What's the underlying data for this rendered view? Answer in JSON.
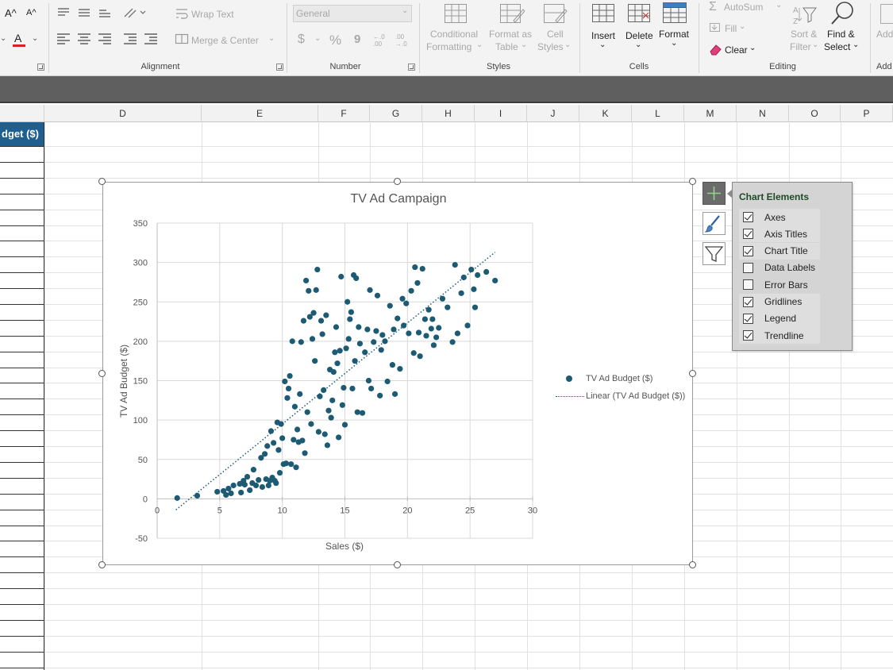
{
  "ribbon": {
    "font_row": {
      "grow_label": "A^",
      "shrink_label": "A^",
      "font_color_label": "A"
    },
    "alignment": {
      "wrap_text_label": "Wrap Text",
      "merge_center_label": "Merge & Center",
      "group_label": "Alignment"
    },
    "number": {
      "format_value": "General",
      "currency_label": "$",
      "percent_label": "%",
      "comma_label": "9",
      "inc_decimal_label": "←.0 .00",
      "dec_decimal_label": ".00 →.0",
      "group_label": "Number"
    },
    "styles": {
      "conditional_formatting_line1": "Conditional",
      "conditional_formatting_line2": "Formatting",
      "format_as_table_line1": "Format as",
      "format_as_table_line2": "Table",
      "cell_styles_line1": "Cell",
      "cell_styles_line2": "Styles",
      "group_label": "Styles"
    },
    "cells": {
      "insert_label": "Insert",
      "delete_label": "Delete",
      "format_label": "Format",
      "group_label": "Cells"
    },
    "editing": {
      "autosum_label": "AutoSum",
      "fill_label": "Fill",
      "clear_label": "Clear",
      "sort_filter_line1": "Sort &",
      "sort_filter_line2": "Filter",
      "find_select_line1": "Find &",
      "find_select_line2": "Select",
      "group_label": "Editing"
    },
    "addins": {
      "label_top": "Add",
      "group_label": "Add"
    }
  },
  "columns": [
    "D",
    "E",
    "F",
    "G",
    "H",
    "I",
    "J",
    "K",
    "L",
    "M",
    "N",
    "O",
    "P"
  ],
  "sheet": {
    "header_cell_text": "dget ($)"
  },
  "chart_data": {
    "type": "scatter",
    "title": "TV Ad Campaign",
    "xlabel": "Sales ($)",
    "ylabel": "TV Ad Budget ($)",
    "xlim": [
      0,
      30
    ],
    "ylim": [
      -50,
      350
    ],
    "x_ticks": [
      0,
      5,
      10,
      15,
      20,
      25,
      30
    ],
    "y_ticks": [
      -50,
      0,
      50,
      100,
      150,
      200,
      250,
      300,
      350
    ],
    "x_tick_labels": [
      "0",
      "5",
      "10",
      "15",
      "20",
      "25",
      "30"
    ],
    "y_tick_labels": [
      "-50",
      "0",
      "50",
      "100",
      "150",
      "200",
      "250",
      "300",
      "350"
    ],
    "grid": true,
    "legend_position": "right",
    "series": [
      {
        "name": "TV Ad Budget ($)",
        "color": "#1d5a73",
        "points": [
          [
            1.6,
            1
          ],
          [
            3.2,
            4
          ],
          [
            4.8,
            9
          ],
          [
            5.3,
            10
          ],
          [
            5.5,
            5
          ],
          [
            5.7,
            13
          ],
          [
            5.9,
            7
          ],
          [
            6.1,
            17
          ],
          [
            6.6,
            19
          ],
          [
            6.7,
            8
          ],
          [
            6.9,
            23
          ],
          [
            7.0,
            18
          ],
          [
            7.2,
            28
          ],
          [
            7.4,
            11
          ],
          [
            7.6,
            20
          ],
          [
            7.7,
            37
          ],
          [
            7.9,
            17
          ],
          [
            8.1,
            24
          ],
          [
            8.3,
            52
          ],
          [
            8.4,
            15
          ],
          [
            8.6,
            57
          ],
          [
            8.7,
            25
          ],
          [
            8.8,
            67
          ],
          [
            8.9,
            17
          ],
          [
            9.0,
            23
          ],
          [
            9.1,
            86
          ],
          [
            9.2,
            27
          ],
          [
            9.3,
            71
          ],
          [
            9.4,
            23
          ],
          [
            9.5,
            20
          ],
          [
            9.6,
            97
          ],
          [
            9.7,
            62
          ],
          [
            9.8,
            33
          ],
          [
            9.9,
            95
          ],
          [
            10.0,
            77
          ],
          [
            10.1,
            44
          ],
          [
            10.2,
            149
          ],
          [
            10.3,
            45
          ],
          [
            10.4,
            128
          ],
          [
            10.5,
            140
          ],
          [
            10.6,
            156
          ],
          [
            10.7,
            44
          ],
          [
            10.8,
            200
          ],
          [
            10.9,
            75
          ],
          [
            11.0,
            117
          ],
          [
            11.1,
            40
          ],
          [
            11.2,
            88
          ],
          [
            11.3,
            72
          ],
          [
            11.4,
            133
          ],
          [
            11.5,
            199
          ],
          [
            11.6,
            74
          ],
          [
            11.7,
            226
          ],
          [
            11.8,
            58
          ],
          [
            11.9,
            277
          ],
          [
            12.0,
            110
          ],
          [
            12.1,
            264
          ],
          [
            12.2,
            231
          ],
          [
            12.3,
            95
          ],
          [
            12.4,
            203
          ],
          [
            12.5,
            236
          ],
          [
            12.6,
            175
          ],
          [
            12.7,
            265
          ],
          [
            12.8,
            291
          ],
          [
            12.9,
            85
          ],
          [
            13.0,
            130
          ],
          [
            13.1,
            226
          ],
          [
            13.2,
            209
          ],
          [
            13.3,
            138
          ],
          [
            13.4,
            82
          ],
          [
            13.5,
            233
          ],
          [
            13.6,
            68
          ],
          [
            13.7,
            112
          ],
          [
            13.8,
            164
          ],
          [
            13.9,
            103
          ],
          [
            14.0,
            125
          ],
          [
            14.1,
            161
          ],
          [
            14.2,
            186
          ],
          [
            14.3,
            218
          ],
          [
            14.4,
            172
          ],
          [
            14.5,
            78
          ],
          [
            14.6,
            188
          ],
          [
            14.7,
            282
          ],
          [
            14.8,
            119
          ],
          [
            14.9,
            141
          ],
          [
            15.0,
            94
          ],
          [
            15.1,
            191
          ],
          [
            15.2,
            250
          ],
          [
            15.3,
            203
          ],
          [
            15.4,
            228
          ],
          [
            15.5,
            237
          ],
          [
            15.6,
            140
          ],
          [
            15.7,
            284
          ],
          [
            15.8,
            175
          ],
          [
            15.9,
            280
          ],
          [
            16.0,
            110
          ],
          [
            16.1,
            218
          ],
          [
            16.2,
            197
          ],
          [
            16.4,
            109
          ],
          [
            16.6,
            186
          ],
          [
            16.8,
            215
          ],
          [
            16.9,
            150
          ],
          [
            17.0,
            265
          ],
          [
            17.1,
            140
          ],
          [
            17.3,
            199
          ],
          [
            17.5,
            213
          ],
          [
            17.6,
            258
          ],
          [
            17.8,
            131
          ],
          [
            17.9,
            189
          ],
          [
            18.0,
            208
          ],
          [
            18.2,
            200
          ],
          [
            18.4,
            149
          ],
          [
            18.6,
            245
          ],
          [
            18.8,
            170
          ],
          [
            18.9,
            215
          ],
          [
            19.0,
            133
          ],
          [
            19.2,
            229
          ],
          [
            19.4,
            165
          ],
          [
            19.6,
            254
          ],
          [
            19.7,
            220
          ],
          [
            19.9,
            248
          ],
          [
            20.1,
            210
          ],
          [
            20.3,
            264
          ],
          [
            20.5,
            185
          ],
          [
            20.6,
            294
          ],
          [
            20.8,
            274
          ],
          [
            20.9,
            211
          ],
          [
            21.0,
            181
          ],
          [
            21.2,
            292
          ],
          [
            21.4,
            228
          ],
          [
            21.5,
            207
          ],
          [
            21.7,
            240
          ],
          [
            21.9,
            216
          ],
          [
            22.0,
            228
          ],
          [
            22.1,
            195
          ],
          [
            22.3,
            205
          ],
          [
            22.5,
            217
          ],
          [
            22.8,
            254
          ],
          [
            23.2,
            243
          ],
          [
            23.6,
            199
          ],
          [
            23.8,
            297
          ],
          [
            24.0,
            210
          ],
          [
            24.3,
            261
          ],
          [
            24.5,
            281
          ],
          [
            24.8,
            220
          ],
          [
            25.1,
            291
          ],
          [
            25.3,
            266
          ],
          [
            25.4,
            243
          ],
          [
            25.6,
            284
          ],
          [
            26.3,
            288
          ],
          [
            27.0,
            277
          ]
        ]
      }
    ],
    "trendline": {
      "name": "Linear (TV Ad Budget ($))",
      "type": "linear",
      "from": [
        1.5,
        -14
      ],
      "to": [
        27.0,
        313
      ]
    }
  },
  "chart_elements_panel": {
    "title": "Chart Elements",
    "items": [
      {
        "label": "Axes",
        "checked": true
      },
      {
        "label": "Axis Titles",
        "checked": true
      },
      {
        "label": "Chart Title",
        "checked": true
      },
      {
        "label": "Data Labels",
        "checked": false
      },
      {
        "label": "Error Bars",
        "checked": false
      },
      {
        "label": "Gridlines",
        "checked": true
      },
      {
        "label": "Legend",
        "checked": true
      },
      {
        "label": "Trendline",
        "checked": true
      }
    ]
  },
  "colors": {
    "accent": "#1f5f8f",
    "series": "#1d5a73",
    "panel_title": "#1e4b27",
    "font_color_bar": "#e02020"
  },
  "icons": {
    "plus": "plus-icon",
    "brush": "brush-icon",
    "filter": "filter-icon"
  }
}
